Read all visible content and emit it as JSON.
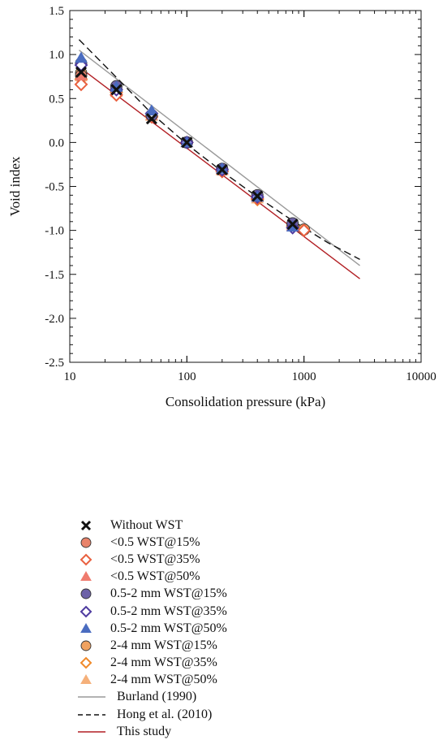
{
  "chart_data": {
    "type": "scatter",
    "xlabel": "Consolidation pressure (kPa)",
    "ylabel": "Void index",
    "xscale": "log",
    "xlim": [
      10,
      10000
    ],
    "ylim": [
      -2.5,
      1.5
    ],
    "x_ticks": [
      10,
      100,
      1000,
      10000
    ],
    "x_tick_labels": [
      "10",
      "100",
      "1000",
      "10000"
    ],
    "y_ticks": [
      1.5,
      1.0,
      0.5,
      0.0,
      -0.5,
      -1.0,
      -1.5,
      -2.0,
      -2.5
    ],
    "y_tick_labels": [
      "1.5",
      "1.0",
      "0.5",
      "0.0",
      "-0.5",
      "-1.0",
      "-1.5",
      "-2.0",
      "-2.5"
    ],
    "grid": false,
    "legend_position": "below",
    "series": [
      {
        "name": "Without WST",
        "marker": "x",
        "color": "#111111",
        "x": [
          12.5,
          25,
          50,
          100,
          200,
          400,
          800
        ],
        "y": [
          0.8,
          0.6,
          0.27,
          0.0,
          -0.31,
          -0.61,
          -0.93
        ]
      },
      {
        "name": "<0.5 WST@15%",
        "marker": "circle",
        "color": "#E9836A",
        "x": [
          12.5,
          25,
          50,
          100,
          200,
          400,
          800
        ],
        "y": [
          0.76,
          0.6,
          0.31,
          0.0,
          -0.31,
          -0.62,
          -0.93
        ]
      },
      {
        "name": "<0.5 WST@35%",
        "marker": "diamond-open",
        "color": "#E9603F",
        "x": [
          12.5,
          25,
          50,
          100,
          200,
          400,
          1000
        ],
        "y": [
          0.66,
          0.54,
          0.29,
          0.0,
          -0.33,
          -0.64,
          -1.0
        ]
      },
      {
        "name": "<0.5 WST@50%",
        "marker": "triangle",
        "color": "#EF7B6E",
        "x": [
          12.5,
          25,
          50,
          100,
          200,
          400,
          800
        ],
        "y": [
          0.76,
          0.6,
          0.31,
          0.0,
          -0.31,
          -0.62,
          -0.95
        ]
      },
      {
        "name": "0.5-2 mm WST@15%",
        "marker": "circle",
        "color": "#6D62A8",
        "x": [
          12.5,
          25,
          50,
          100,
          200,
          400,
          800
        ],
        "y": [
          0.9,
          0.64,
          0.31,
          0.0,
          -0.3,
          -0.6,
          -0.92
        ]
      },
      {
        "name": "0.5-2 mm WST@35%",
        "marker": "diamond-open",
        "color": "#4E3BA0",
        "x": [
          12.5,
          25,
          50,
          100,
          200,
          400,
          800
        ],
        "y": [
          0.88,
          0.6,
          0.33,
          0.0,
          -0.31,
          -0.62,
          -0.97
        ]
      },
      {
        "name": "0.5-2 mm WST@50%",
        "marker": "triangle",
        "color": "#4A6CC0",
        "x": [
          12.5,
          25,
          50,
          100,
          200,
          400,
          800
        ],
        "y": [
          0.96,
          0.63,
          0.36,
          0.0,
          -0.3,
          -0.62,
          -0.96
        ]
      },
      {
        "name": "2-4 mm WST@15%",
        "marker": "circle",
        "color": "#F0A260",
        "x": [
          12.5,
          25,
          50,
          100,
          200,
          400,
          800,
          1000
        ],
        "y": [
          0.79,
          0.59,
          0.3,
          0.0,
          -0.31,
          -0.63,
          -0.93,
          -0.99
        ]
      },
      {
        "name": "2-4 mm WST@35%",
        "marker": "diamond-open",
        "color": "#F08A2A",
        "x": [
          12.5,
          25,
          50,
          100,
          200,
          400,
          800
        ],
        "y": [
          0.72,
          0.57,
          0.3,
          0.0,
          -0.33,
          -0.65,
          -0.95
        ]
      },
      {
        "name": "2-4 mm WST@50%",
        "marker": "triangle",
        "color": "#F5B07A",
        "x": [
          12.5,
          25,
          50,
          100,
          200,
          400,
          800
        ],
        "y": [
          0.75,
          0.57,
          0.3,
          0.0,
          -0.32,
          -0.64,
          -0.94
        ]
      }
    ],
    "lines": [
      {
        "name": "Burland (1990)",
        "style": "solid",
        "color": "#9a9a9a",
        "x": [
          12,
          3000
        ],
        "y": [
          1.05,
          -1.4
        ]
      },
      {
        "name": "Hong et al. (2010)",
        "style": "dashed",
        "color": "#111111",
        "x": [
          12,
          25,
          50,
          100,
          200,
          400,
          800,
          1600,
          3000
        ],
        "y": [
          1.17,
          0.74,
          0.33,
          -0.02,
          -0.33,
          -0.62,
          -0.89,
          -1.14,
          -1.33
        ]
      },
      {
        "name": "This study",
        "style": "solid",
        "color": "#B21F24",
        "x": [
          12,
          3000
        ],
        "y": [
          0.86,
          -1.55
        ]
      }
    ]
  }
}
